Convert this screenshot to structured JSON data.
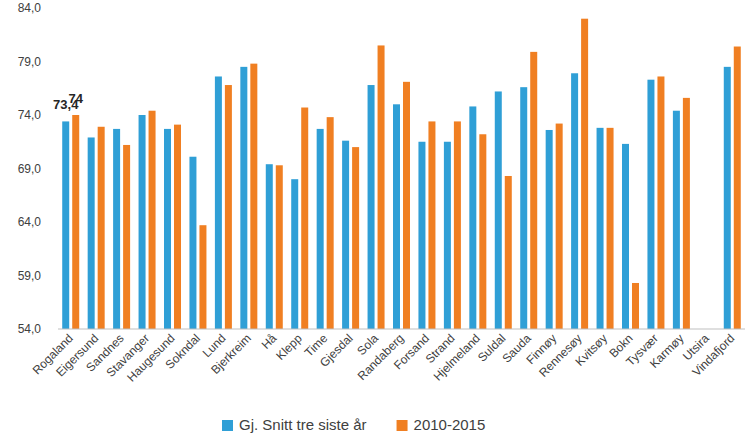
{
  "chart_data": {
    "type": "bar",
    "categories": [
      "Rogaland",
      "Eigersund",
      "Sandnes",
      "Stavanger",
      "Haugesund",
      "Sokndal",
      "Lund",
      "Bjerkreim",
      "Hå",
      "Klepp",
      "Time",
      "Gjesdal",
      "Sola",
      "Randaberg",
      "Forsand",
      "Strand",
      "Hjelmeland",
      "Suldal",
      "Sauda",
      "Finnøy",
      "Rennesøy",
      "Kvitsøy",
      "Bokn",
      "Tysvær",
      "Karmøy",
      "Utsira",
      "Vindafjord"
    ],
    "series": [
      {
        "name": "Gj. Snitt tre siste år",
        "color": "#2f9fd6",
        "values": [
          73.4,
          71.9,
          72.7,
          74.0,
          72.7,
          70.1,
          77.6,
          78.5,
          69.4,
          68.0,
          72.7,
          71.6,
          76.8,
          75.0,
          71.5,
          71.5,
          74.8,
          76.2,
          76.6,
          72.6,
          77.9,
          72.8,
          71.3,
          77.3,
          74.4,
          null,
          78.5
        ],
        "value_labels": [
          "73,4",
          null,
          null,
          null,
          null,
          null,
          null,
          null,
          null,
          null,
          null,
          null,
          null,
          null,
          null,
          null,
          null,
          null,
          null,
          null,
          null,
          null,
          null,
          null,
          null,
          null,
          null
        ]
      },
      {
        "name": "2010-2015",
        "color": "#f07f22",
        "values": [
          74,
          72.9,
          71.2,
          74.4,
          73.1,
          63.7,
          76.8,
          78.8,
          69.3,
          74.7,
          73.8,
          71.0,
          80.5,
          77.1,
          73.4,
          73.4,
          72.2,
          68.3,
          79.9,
          73.2,
          83.0,
          72.8,
          58.3,
          77.6,
          75.6,
          null,
          80.4
        ],
        "value_labels": [
          "74",
          null,
          null,
          null,
          null,
          null,
          null,
          null,
          null,
          null,
          null,
          null,
          null,
          null,
          null,
          null,
          null,
          null,
          null,
          null,
          null,
          null,
          null,
          null,
          null,
          null,
          null
        ]
      }
    ],
    "ylim": [
      54,
      84
    ],
    "yticks": [
      {
        "value": 54,
        "label": "54,0"
      },
      {
        "value": 59,
        "label": "59,0"
      },
      {
        "value": 64,
        "label": "64,0"
      },
      {
        "value": 69,
        "label": "69,0"
      },
      {
        "value": 74,
        "label": "74,0"
      },
      {
        "value": 79,
        "label": "79,0"
      },
      {
        "value": 84,
        "label": "84,0"
      }
    ],
    "grid": false,
    "legend": "bottom",
    "data_labels": true
  }
}
